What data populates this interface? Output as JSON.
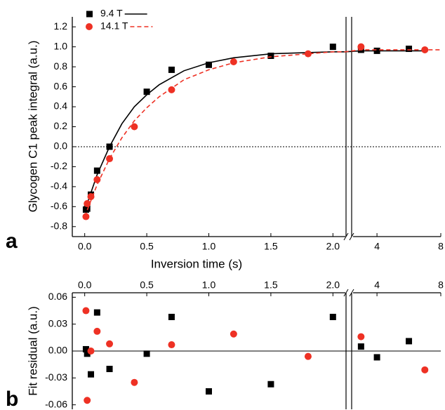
{
  "chart_data": [
    {
      "type": "scatter",
      "panel_label": "a",
      "ylabel": "Glycogen C1 peak integral (a.u.)",
      "xlabel": "Inversion time (s)",
      "xlim_segments": [
        [
          -0.1,
          2.1
        ],
        [
          2.5,
          8
        ]
      ],
      "ylim": [
        -0.9,
        1.3
      ],
      "xticks": [
        {
          "value": 0,
          "label": "0.0"
        },
        0.5,
        {
          "value": 1,
          "label": "1.0"
        },
        1.5,
        {
          "value": 2,
          "label": "2.0"
        },
        4,
        8
      ],
      "yticks": [
        1.2,
        {
          "value": 1,
          "label": "1.0"
        },
        0.8,
        0.6,
        0.4,
        0.2,
        {
          "value": 0,
          "label": "0.0"
        },
        -0.2,
        -0.4,
        -0.6,
        -0.8
      ],
      "zero_line": 0,
      "legend": "top-left",
      "series": [
        {
          "name": "9.4 T",
          "color": "#000000",
          "marker": "square",
          "line_style": "solid",
          "x": [
            0.01,
            0.02,
            0.05,
            0.1,
            0.2,
            0.5,
            0.7,
            1.0,
            1.5,
            2.0,
            3,
            4,
            6
          ],
          "values": [
            -0.63,
            -0.62,
            -0.48,
            -0.24,
            0.0,
            0.55,
            0.77,
            0.82,
            0.91,
            1.0,
            0.97,
            0.96,
            0.98
          ],
          "fit_x": [
            0,
            0.1,
            0.2,
            0.3,
            0.4,
            0.5,
            0.6,
            0.8,
            1.0,
            1.2,
            1.5,
            2.0,
            2.1,
            3,
            7
          ],
          "fit_values": [
            -0.64,
            -0.28,
            0.0,
            0.23,
            0.4,
            0.52,
            0.62,
            0.76,
            0.84,
            0.89,
            0.93,
            0.95,
            0.95,
            0.96,
            0.96
          ]
        },
        {
          "name": "14.1 T",
          "color": "#ee3124",
          "marker": "circle",
          "line_style": "dashed",
          "x": [
            0.01,
            0.02,
            0.05,
            0.1,
            0.2,
            0.4,
            0.7,
            1.2,
            1.8,
            3,
            7
          ],
          "values": [
            -0.7,
            -0.57,
            -0.5,
            -0.33,
            -0.12,
            0.2,
            0.57,
            0.85,
            0.93,
            1.0,
            0.97
          ],
          "fit_x": [
            0,
            0.1,
            0.2,
            0.3,
            0.4,
            0.5,
            0.6,
            0.8,
            1.0,
            1.2,
            1.5,
            2.0,
            2.1,
            3,
            8
          ],
          "fit_values": [
            -0.7,
            -0.38,
            -0.12,
            0.09,
            0.26,
            0.39,
            0.5,
            0.67,
            0.77,
            0.84,
            0.9,
            0.95,
            0.95,
            0.97,
            0.97
          ]
        }
      ]
    },
    {
      "type": "scatter",
      "panel_label": "b",
      "ylabel": "Fit residual (a.u.)",
      "xlim_segments": [
        [
          -0.1,
          2.1
        ],
        [
          2.5,
          8
        ]
      ],
      "ylim": [
        -0.065,
        0.065
      ],
      "xticks": [
        {
          "value": 0,
          "label": "0.0"
        },
        0.5,
        {
          "value": 1,
          "label": "1.0"
        },
        1.5,
        {
          "value": 2,
          "label": "2.0"
        },
        4,
        8
      ],
      "yticks": [
        0.06,
        0.03,
        {
          "value": 0,
          "label": "0.00"
        },
        -0.03,
        -0.06
      ],
      "zero_line": 0,
      "series": [
        {
          "color": "#000000",
          "marker": "square",
          "x": [
            0.01,
            0.02,
            0.05,
            0.1,
            0.2,
            0.5,
            0.7,
            1.0,
            1.5,
            2.0,
            3,
            4,
            6
          ],
          "values": [
            0.002,
            -0.003,
            -0.026,
            0.043,
            -0.02,
            -0.003,
            0.038,
            -0.045,
            -0.037,
            0.038,
            0.005,
            -0.007,
            0.011
          ]
        },
        {
          "color": "#ee3124",
          "marker": "circle",
          "x": [
            0.01,
            0.02,
            0.05,
            0.1,
            0.2,
            0.4,
            0.7,
            1.2,
            1.8,
            3,
            7
          ],
          "values": [
            0.045,
            -0.055,
            0.0,
            0.022,
            0.008,
            -0.035,
            0.007,
            0.019,
            -0.006,
            0.016,
            -0.021
          ]
        }
      ]
    }
  ]
}
